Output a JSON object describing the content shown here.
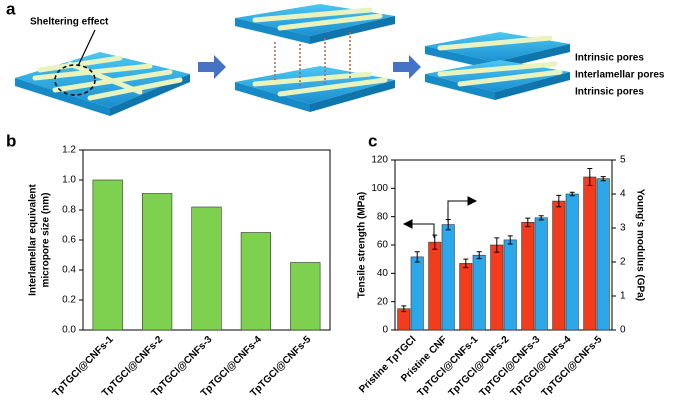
{
  "panels": [
    "a",
    "b",
    "c"
  ],
  "diagram": {
    "labels": [
      "Sheltering effect",
      "Intrinsic pores",
      "Interlamellar pores",
      "Intrinsic pores"
    ]
  },
  "chart_data": [
    {
      "type": "bar",
      "ylabel": [
        "Interlamellar equivalent",
        "micropore size (nm)"
      ],
      "categories": [
        "TpTGCl@CNFs-1",
        "TpTGCl@CNFs-2",
        "TpTGCl@CNFs-3",
        "TpTGCl@CNFs-4",
        "TpTGCl@CNFs-5"
      ],
      "values": [
        1.0,
        0.91,
        0.82,
        0.65,
        0.45
      ],
      "color": "#7ed04f",
      "ylim": [
        0,
        1.2
      ],
      "yticks": [
        {
          "value": 0,
          "label": "0.0"
        },
        0.2,
        0.4,
        0.6,
        0.8,
        {
          "value": 1,
          "label": "1.0"
        },
        1.2
      ]
    },
    {
      "type": "bar",
      "ylabel": "Tensile strength (MPa)",
      "y2label": "Young's modulus (GPa)",
      "categories": [
        "Pristine TpTGCl",
        "Pristine CNF",
        "TpTGCl@CNFs-1",
        "TpTGCl@CNFs-2",
        "TpTGCl@CNFs-3",
        "TpTGCl@CNFs-4",
        "TpTGCl@CNFs-5"
      ],
      "series": [
        {
          "color": "#f23c1c",
          "values": [
            15,
            62,
            47,
            60,
            76,
            91,
            108
          ],
          "errors": [
            2,
            5,
            3,
            5,
            3,
            4,
            6
          ]
        },
        {
          "color": "#2ba7ea",
          "axis": "y2",
          "values": [
            2.15,
            3.1,
            2.2,
            2.65,
            3.3,
            4.0,
            4.45
          ],
          "errors": [
            0.15,
            0.15,
            0.1,
            0.12,
            0.06,
            0.05,
            0.06
          ]
        }
      ],
      "ylim": [
        0,
        120
      ],
      "yticks": [
        0,
        20,
        40,
        60,
        80,
        100,
        120
      ],
      "y2lim": [
        0,
        5
      ],
      "y2ticks": [
        0,
        1,
        2,
        3,
        4,
        5
      ]
    }
  ]
}
